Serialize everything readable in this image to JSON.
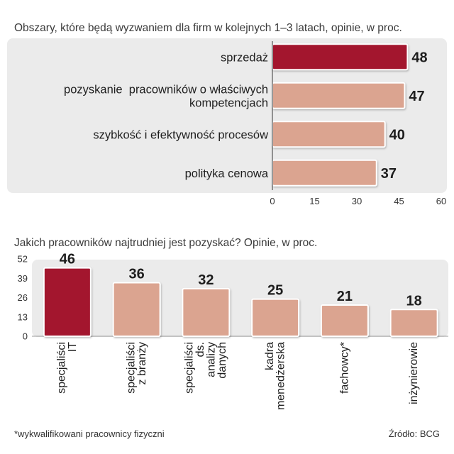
{
  "colors": {
    "highlight": "#a3122f",
    "bar": "#dba490",
    "panel": "#ebebeb",
    "axis": "#555555"
  },
  "chart_data": [
    {
      "type": "bar",
      "horizontal": true,
      "title": "Obszary, które będą wyzwaniem dla firm w kolejnych 1–3 latach, opinie, w proc.",
      "categories": [
        [
          "sprzedaż"
        ],
        [
          "pozyskanie  pracowników o właściwych",
          "kompetencjach"
        ],
        [
          "szybkość i efektywność procesów"
        ],
        [
          "polityka cenowa"
        ]
      ],
      "values": [
        48,
        47,
        40,
        37
      ],
      "highlight": [
        true,
        false,
        false,
        false
      ],
      "xlim": [
        0,
        60
      ],
      "xticks": [
        0,
        15,
        30,
        45,
        60
      ]
    },
    {
      "type": "bar",
      "horizontal": false,
      "title": "Jakich pracowników najtrudniej jest pozyskać? Opinie, w proc.",
      "categories": [
        [
          "specjaliści",
          "IT"
        ],
        [
          "specjaliści",
          "z branży"
        ],
        [
          "specjaliści",
          "ds.",
          "analizy",
          "danych"
        ],
        [
          "kadra",
          "menedżerska"
        ],
        [
          "fachowcy*"
        ],
        [
          "inżynierowie"
        ]
      ],
      "values": [
        46,
        36,
        32,
        25,
        21,
        18
      ],
      "highlight": [
        true,
        false,
        false,
        false,
        false,
        false
      ],
      "ylim": [
        0,
        52
      ],
      "yticks": [
        52,
        39,
        26,
        13,
        0
      ]
    }
  ],
  "footnote": "*wykwalifikowani pracownicy fizyczni",
  "source": "Źródło: BCG"
}
